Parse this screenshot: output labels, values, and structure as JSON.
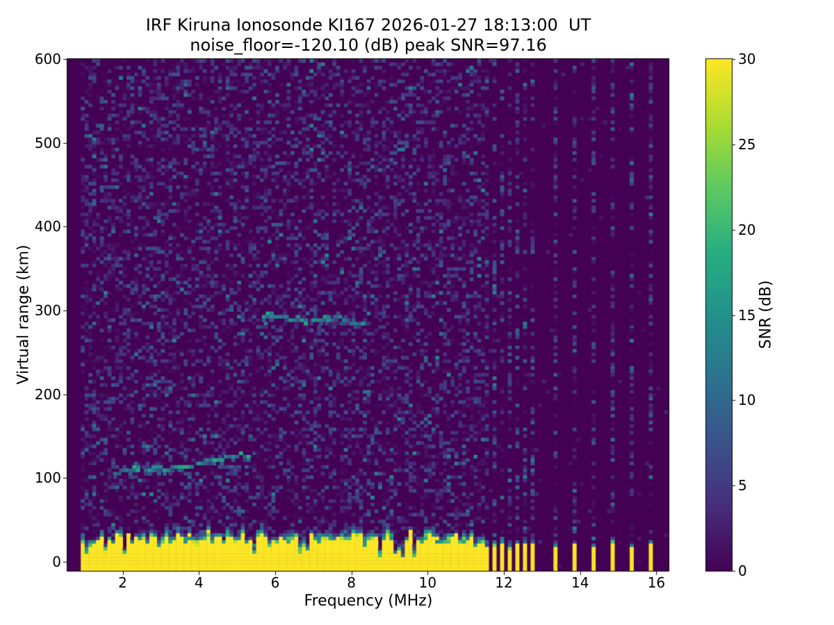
{
  "figure": {
    "title_line1": "IRF Kiruna Ionosonde KI167 2026-01-27 18:13:00  UT",
    "title_line2": "noise_floor=-120.10 (dB) peak SNR=97.16"
  },
  "chart_data": {
    "type": "heatmap",
    "title": "IRF Kiruna Ionosonde KI167 2026-01-27 18:13:00  UT",
    "subtitle": "noise_floor=-120.10 (dB) peak SNR=97.16",
    "station": "IRF Kiruna Ionosonde KI167",
    "timestamp_ut": "2026-01-27 18:13:00",
    "noise_floor_db": -120.1,
    "peak_snr_db": 97.16,
    "xlabel": "Frequency (MHz)",
    "ylabel": "Virtual range (km)",
    "xlim": [
      0.55,
      16.32
    ],
    "ylim": [
      -10.8,
      600
    ],
    "x_ticks": [
      2,
      4,
      6,
      8,
      10,
      12,
      14,
      16
    ],
    "y_ticks": [
      0,
      100,
      200,
      300,
      400,
      500,
      600
    ],
    "grid_on": false,
    "colormap": "viridis",
    "colorbar": {
      "label": "SNR (dB)",
      "vmin": 0,
      "vmax": 30,
      "ticks": [
        0,
        5,
        10,
        15,
        20,
        25,
        30
      ],
      "position": "right"
    },
    "grid": {
      "freq_min": 0.95,
      "freq_step": 0.1,
      "ncols": 154,
      "nrows": 150
    },
    "features": {
      "background_noise": {
        "zone_max_freq_mhz": 11.45,
        "speckle_probability": 0.5,
        "snr_range_db": [
          0,
          8
        ]
      },
      "ground_clutter": {
        "snr_db": 30,
        "top_km_range": [
          18,
          32
        ],
        "transition_km_range": [
          5,
          18
        ],
        "notch_probability": 0.07,
        "notch_top_km_range": [
          3,
          10
        ]
      },
      "interference_frequencies_mhz": [
        11.55,
        11.75,
        11.95,
        12.15,
        12.35,
        12.55,
        12.75,
        13.35,
        13.85,
        14.35,
        14.85,
        15.35,
        15.85
      ],
      "interference_clutter_top_km_range": [
        13,
        23
      ],
      "echo_traces": [
        {
          "name": "E-region echo",
          "points_mhz_km": [
            [
              1.8,
              107
            ],
            [
              2.3,
              109
            ],
            [
              2.8,
              111
            ],
            [
              3.3,
              113
            ],
            [
              3.8,
              117
            ],
            [
              4.3,
              121
            ],
            [
              4.8,
              125
            ],
            [
              5.3,
              128
            ]
          ],
          "snr_range_db": [
            9,
            19
          ]
        },
        {
          "name": "F-region echo",
          "points_mhz_km": [
            [
              5.7,
              295
            ],
            [
              6.1,
              292
            ],
            [
              6.5,
              290
            ],
            [
              6.9,
              289
            ],
            [
              7.3,
              290
            ],
            [
              7.7,
              288
            ],
            [
              8.1,
              286
            ],
            [
              8.4,
              285
            ]
          ],
          "snr_range_db": [
            9,
            18
          ]
        }
      ]
    },
    "viridis_stops": [
      "#440154",
      "#472d7b",
      "#3b528b",
      "#2c728e",
      "#21918c",
      "#28ae80",
      "#5ec962",
      "#addc30",
      "#fde725"
    ]
  }
}
